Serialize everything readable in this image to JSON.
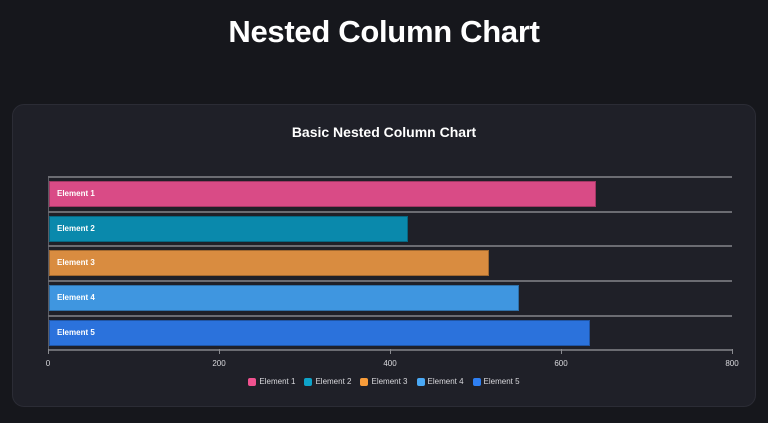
{
  "page": {
    "title": "Nested Column Chart"
  },
  "chart_data": {
    "type": "bar",
    "orientation": "horizontal",
    "title": "Basic Nested Column Chart",
    "xlabel": "",
    "ylabel": "",
    "categories": [
      "Element 1",
      "Element 2",
      "Element 3",
      "Element 4",
      "Element 5"
    ],
    "values": [
      640,
      420,
      515,
      550,
      633
    ],
    "background_values": [
      800,
      800,
      800,
      800,
      800
    ],
    "xlim": [
      0,
      800
    ],
    "x_ticks": [
      0,
      200,
      400,
      600,
      800
    ],
    "grid": false,
    "legend_position": "bottom",
    "legend": [
      "Element 1",
      "Element 2",
      "Element 3",
      "Element 4",
      "Element 5"
    ],
    "bar_colors": [
      "#d94b86",
      "#0a89ac",
      "#d98c40",
      "#3f96e0",
      "#2b72dc"
    ],
    "legend_colors": [
      "#f0528f",
      "#0ea3c9",
      "#f79c3a",
      "#4aa9f6",
      "#2e7ff2"
    ]
  }
}
